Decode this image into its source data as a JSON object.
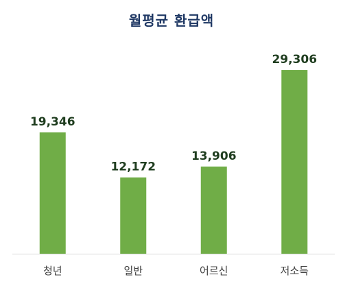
{
  "chart_data": {
    "type": "bar",
    "title": "월평균 환급액",
    "categories": [
      "청년",
      "일반",
      "어르신",
      "저소득"
    ],
    "values": [
      19346,
      12172,
      13906,
      29306
    ],
    "data_labels": [
      "19,346",
      "12,172",
      "13,906",
      "29,306"
    ],
    "ylim": [
      0,
      31500
    ],
    "grid": false,
    "bar_color": "#70ad47",
    "axis_color": "#d9d9d9"
  }
}
